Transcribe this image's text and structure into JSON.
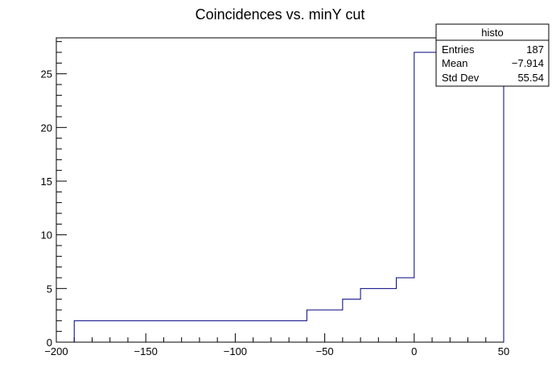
{
  "chart_data": {
    "type": "histogram",
    "title": "Coincidences vs. minY cut",
    "xlabel": "",
    "ylabel": "",
    "xlim": [
      -200,
      50
    ],
    "ylim": [
      0,
      28.35
    ],
    "grid": false,
    "line_color": "#000080",
    "bins": [
      {
        "x0": -190,
        "x1": -60,
        "value": 2
      },
      {
        "x0": -60,
        "x1": -40,
        "value": 3
      },
      {
        "x0": -40,
        "x1": -30,
        "value": 4
      },
      {
        "x0": -30,
        "x1": -10,
        "value": 5
      },
      {
        "x0": -10,
        "x1": 0,
        "value": 6
      },
      {
        "x0": 0,
        "x1": 50,
        "value": 27
      }
    ],
    "x_ticks": [
      -200,
      -150,
      -100,
      -50,
      0,
      50
    ],
    "x_tick_labels": [
      "−200",
      "−150",
      "−100",
      "−50",
      "0",
      "50"
    ],
    "y_ticks": [
      0,
      5,
      10,
      15,
      20,
      25
    ],
    "y_tick_labels": [
      "0",
      "5",
      "10",
      "15",
      "20",
      "25"
    ]
  },
  "stats_box": {
    "name": "histo",
    "rows": [
      {
        "label": "Entries",
        "value": "187"
      },
      {
        "label": "Mean",
        "value": "−7.914"
      },
      {
        "label": "Std Dev",
        "value": "55.54"
      }
    ]
  }
}
